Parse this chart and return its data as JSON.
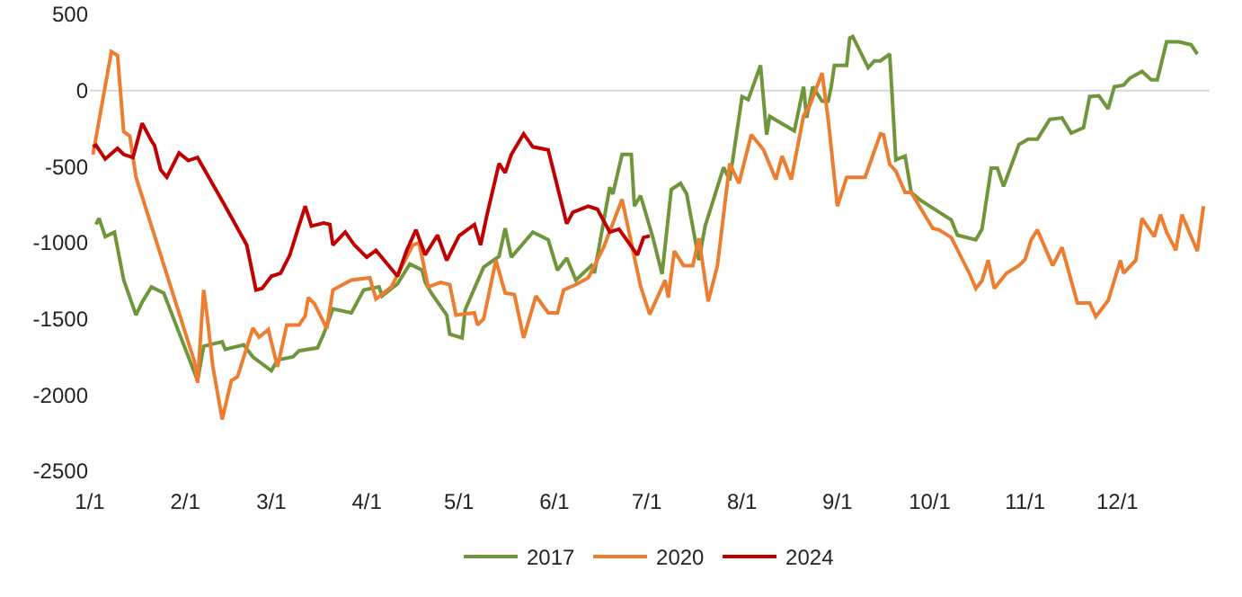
{
  "chart_data": {
    "type": "line",
    "xlim": [
      "--01-01",
      "--12-31"
    ],
    "xticks": [
      {
        "value": "--01-01",
        "label": "1/1"
      },
      {
        "value": "--02-01",
        "label": "2/1"
      },
      {
        "value": "--03-01",
        "label": "3/1"
      },
      {
        "value": "--04-01",
        "label": "4/1"
      },
      {
        "value": "--05-01",
        "label": "5/1"
      },
      {
        "value": "--06-01",
        "label": "6/1"
      },
      {
        "value": "--07-01",
        "label": "7/1"
      },
      {
        "value": "--08-01",
        "label": "8/1"
      },
      {
        "value": "--09-01",
        "label": "9/1"
      },
      {
        "value": "--10-01",
        "label": "10/1"
      },
      {
        "value": "--11-01",
        "label": "11/1"
      },
      {
        "value": "--12-01",
        "label": "12/1"
      }
    ],
    "ylim": [
      -2500,
      500
    ],
    "yticks": [
      -2500,
      -2000,
      -1500,
      -1000,
      -500,
      0,
      500
    ],
    "grid": false,
    "ref_lines": [
      {
        "axis": "y",
        "value": 0,
        "color": "#d9d9d9"
      }
    ],
    "legend": "bottom",
    "marker": "none",
    "line_style": "solid",
    "series": [
      {
        "name": "2017",
        "color": "#70963c",
        "x": [
          "--01-03",
          "--01-04",
          "--01-06",
          "--01-09",
          "--01-12",
          "--01-16",
          "--01-18",
          "--01-21",
          "--01-25",
          "--02-05",
          "--02-07",
          "--02-13",
          "--02-14",
          "--02-20",
          "--02-23",
          "--03-01",
          "--03-03",
          "--03-08",
          "--03-10",
          "--03-16",
          "--03-18",
          "--03-21",
          "--03-27",
          "--03-31",
          "--04-05",
          "--04-06",
          "--04-11",
          "--04-15",
          "--04-19",
          "--04-20",
          "--04-22",
          "--04-27",
          "--04-28",
          "--05-02",
          "--05-03",
          "--05-09",
          "--05-14",
          "--05-16",
          "--05-18",
          "--05-25",
          "--05-30",
          "--06-02",
          "--06-05",
          "--06-08",
          "--06-13",
          "--06-14",
          "--06-19",
          "--06-20",
          "--06-23",
          "--06-26",
          "--06-27",
          "--06-29",
          "--07-03",
          "--07-06",
          "--07-09",
          "--07-12",
          "--07-14",
          "--07-18",
          "--07-20",
          "--07-26",
          "--07-28",
          "--08-01",
          "--08-03",
          "--08-07",
          "--08-09",
          "--08-10",
          "--08-18",
          "--08-21",
          "--08-22",
          "--08-24",
          "--08-27",
          "--08-29",
          "--08-30",
          "--08-31",
          "--09-04",
          "--09-05",
          "--09-06",
          "--09-11",
          "--09-13",
          "--09-15",
          "--09-18",
          "--09-20",
          "--09-23",
          "--09-25",
          "--09-28",
          "--10-08",
          "--10-10",
          "--10-16",
          "--10-18",
          "--10-21",
          "--10-23",
          "--10-25",
          "--10-30",
          "--11-02",
          "--11-05",
          "--11-09",
          "--11-13",
          "--11-16",
          "--11-20",
          "--11-22",
          "--11-25",
          "--11-28",
          "--11-30",
          "--12-03",
          "--12-05",
          "--12-09",
          "--12-12",
          "--12-14",
          "--12-17",
          "--12-21",
          "--12-25",
          "--12-27"
        ],
        "values": [
          -880,
          -840,
          -960,
          -930,
          -1245,
          -1475,
          -1390,
          -1290,
          -1330,
          -1905,
          -1680,
          -1650,
          -1700,
          -1670,
          -1750,
          -1840,
          -1770,
          -1750,
          -1710,
          -1690,
          -1600,
          -1435,
          -1460,
          -1310,
          -1290,
          -1350,
          -1270,
          -1140,
          -1180,
          -1260,
          -1330,
          -1475,
          -1600,
          -1625,
          -1440,
          -1160,
          -1090,
          -905,
          -1095,
          -930,
          -980,
          -1180,
          -1100,
          -1245,
          -1150,
          -1200,
          -635,
          -680,
          -420,
          -420,
          -760,
          -690,
          -965,
          -1205,
          -650,
          -610,
          -680,
          -1115,
          -890,
          -505,
          -590,
          -40,
          -60,
          165,
          -290,
          -170,
          -265,
          25,
          -180,
          25,
          -70,
          -70,
          25,
          165,
          165,
          345,
          355,
          150,
          195,
          195,
          240,
          -455,
          -430,
          -670,
          -720,
          -850,
          -950,
          -980,
          -910,
          -510,
          -510,
          -630,
          -355,
          -320,
          -320,
          -190,
          -180,
          -280,
          -245,
          -40,
          -35,
          -120,
          25,
          35,
          80,
          125,
          70,
          70,
          320,
          320,
          300,
          240
        ]
      },
      {
        "name": "2020",
        "color": "#ed7d31",
        "x": [
          "--01-02",
          "--01-08",
          "--01-10",
          "--01-12",
          "--01-14",
          "--01-16",
          "--02-04",
          "--02-05",
          "--02-07",
          "--02-08",
          "--02-10",
          "--02-13",
          "--02-16",
          "--02-18",
          "--02-23",
          "--02-25",
          "--02-28",
          "--03-03",
          "--03-06",
          "--03-10",
          "--03-12",
          "--03-13",
          "--03-15",
          "--03-19",
          "--03-21",
          "--03-27",
          "--04-02",
          "--04-04",
          "--04-09",
          "--04-16",
          "--04-18",
          "--04-21",
          "--04-25",
          "--04-28",
          "--04-30",
          "--05-06",
          "--05-07",
          "--05-09",
          "--05-13",
          "--05-16",
          "--05-19",
          "--05-22",
          "--05-26",
          "--05-30",
          "--06-02",
          "--06-04",
          "--06-08",
          "--06-12",
          "--06-14",
          "--06-17",
          "--06-23",
          "--06-29",
          "--07-02",
          "--07-07",
          "--07-08",
          "--07-10",
          "--07-13",
          "--07-16",
          "--07-18",
          "--07-21",
          "--07-24",
          "--07-28",
          "--07-31",
          "--08-04",
          "--08-08",
          "--08-12",
          "--08-14",
          "--08-17",
          "--08-21",
          "--08-23",
          "--08-27",
          "--08-29",
          "--09-01",
          "--09-04",
          "--09-10",
          "--09-12",
          "--09-15",
          "--09-16",
          "--09-18",
          "--09-20",
          "--09-23",
          "--09-25",
          "--10-02",
          "--10-04",
          "--10-08",
          "--10-14",
          "--10-16",
          "--10-18",
          "--10-20",
          "--10-22",
          "--10-26",
          "--10-30",
          "--11-01",
          "--11-03",
          "--11-05",
          "--11-10",
          "--11-13",
          "--11-18",
          "--11-22",
          "--11-24",
          "--11-28",
          "--12-02",
          "--12-03",
          "--12-07",
          "--12-09",
          "--12-11",
          "--12-13",
          "--12-15",
          "--12-17",
          "--12-20",
          "--12-22",
          "--12-25",
          "--12-27",
          "--12-29"
        ],
        "values": [
          -420,
          255,
          230,
          -270,
          -300,
          -570,
          -1780,
          -1920,
          -1310,
          -1460,
          -1815,
          -2160,
          -1905,
          -1880,
          -1560,
          -1620,
          -1570,
          -1815,
          -1540,
          -1540,
          -1480,
          -1360,
          -1400,
          -1565,
          -1310,
          -1245,
          -1230,
          -1370,
          -1290,
          -1015,
          -1000,
          -1290,
          -1260,
          -1275,
          -1475,
          -1460,
          -1540,
          -1500,
          -1115,
          -1330,
          -1340,
          -1625,
          -1350,
          -1460,
          -1460,
          -1310,
          -1275,
          -1230,
          -1150,
          -1030,
          -715,
          -1285,
          -1470,
          -1245,
          -1360,
          -1055,
          -1150,
          -1150,
          -970,
          -1385,
          -1150,
          -480,
          -610,
          -290,
          -390,
          -585,
          -430,
          -585,
          -165,
          -100,
          115,
          -190,
          -760,
          -570,
          -570,
          -455,
          -285,
          -290,
          -485,
          -530,
          -670,
          -670,
          -905,
          -915,
          -965,
          -1205,
          -1300,
          -1250,
          -1115,
          -1300,
          -1200,
          -1150,
          -1110,
          -980,
          -915,
          -1150,
          -1030,
          -1395,
          -1395,
          -1485,
          -1380,
          -1115,
          -1200,
          -1115,
          -840,
          -900,
          -960,
          -815,
          -930,
          -1050,
          -815,
          -960,
          -1055,
          -760
        ]
      },
      {
        "name": "2024",
        "color": "#c00000",
        "x": [
          "--01-02",
          "--01-03",
          "--01-06",
          "--01-10",
          "--01-12",
          "--01-15",
          "--01-18",
          "--01-21",
          "--01-22",
          "--01-24",
          "--01-26",
          "--01-30",
          "--02-02",
          "--02-05",
          "--02-14",
          "--02-21",
          "--02-24",
          "--02-26",
          "--03-01",
          "--03-04",
          "--03-07",
          "--03-09",
          "--03-12",
          "--03-14",
          "--03-18",
          "--03-20",
          "--03-21",
          "--03-25",
          "--03-28",
          "--04-01",
          "--04-04",
          "--04-11",
          "--04-14",
          "--04-17",
          "--04-20",
          "--04-24",
          "--04-27",
          "--05-01",
          "--05-06",
          "--05-08",
          "--05-10",
          "--05-14",
          "--05-16",
          "--05-18",
          "--05-22",
          "--05-25",
          "--05-30",
          "--06-05",
          "--06-07",
          "--06-12",
          "--06-15",
          "--06-19",
          "--06-22",
          "--06-28",
          "--06-30",
          "--07-02"
        ],
        "values": [
          -370,
          -360,
          -450,
          -380,
          -420,
          -440,
          -215,
          -330,
          -360,
          -520,
          -570,
          -410,
          -460,
          -440,
          -760,
          -1015,
          -1310,
          -1300,
          -1220,
          -1200,
          -1080,
          -950,
          -760,
          -890,
          -870,
          -880,
          -1015,
          -930,
          -1015,
          -1095,
          -1050,
          -1220,
          -1050,
          -915,
          -1080,
          -950,
          -1115,
          -955,
          -880,
          -1015,
          -825,
          -480,
          -540,
          -420,
          -285,
          -370,
          -390,
          -875,
          -800,
          -760,
          -780,
          -930,
          -910,
          -1080,
          -965,
          -955
        ]
      }
    ]
  }
}
